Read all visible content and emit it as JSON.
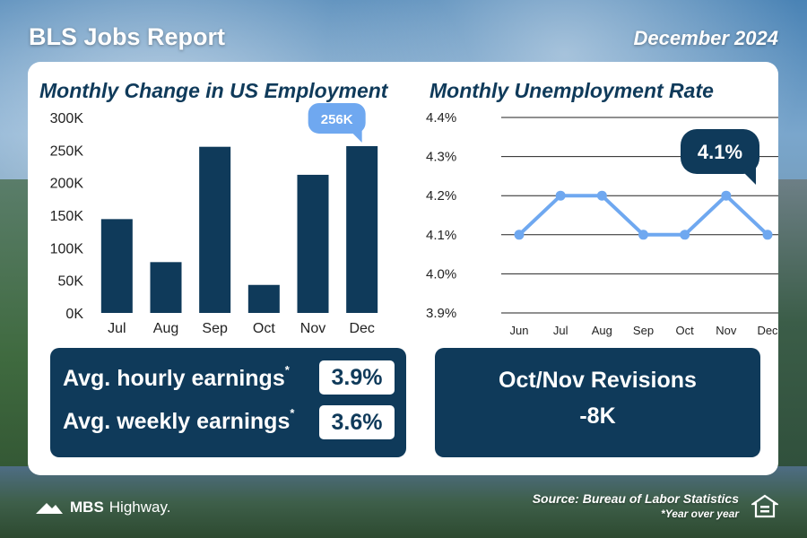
{
  "header": {
    "title": "BLS Jobs Report",
    "date": "December 2024"
  },
  "chart_data": [
    {
      "type": "bar",
      "title": "Monthly Change in US Employment",
      "categories": [
        "Jul",
        "Aug",
        "Sep",
        "Oct",
        "Nov",
        "Dec"
      ],
      "values": [
        144000,
        78000,
        255000,
        43000,
        212000,
        256000
      ],
      "ylim": [
        0,
        300000
      ],
      "yticks": [
        "0K",
        "50K",
        "100K",
        "150K",
        "200K",
        "250K",
        "300K"
      ],
      "callout": "256K",
      "color": "#0f3a5a"
    },
    {
      "type": "line",
      "title": "Monthly Unemployment Rate",
      "categories": [
        "Jun",
        "Jul",
        "Aug",
        "Sep",
        "Oct",
        "Nov",
        "Dec"
      ],
      "values": [
        4.1,
        4.2,
        4.2,
        4.1,
        4.1,
        4.2,
        4.1
      ],
      "ylim": [
        3.9,
        4.4
      ],
      "yticks": [
        "3.9%",
        "4.0%",
        "4.1%",
        "4.2%",
        "4.3%",
        "4.4%"
      ],
      "callout": "4.1%",
      "grid": true,
      "color": "#6fa8f0"
    }
  ],
  "earnings": {
    "hourly_label": "Avg. hourly earnings",
    "hourly_value": "3.9%",
    "weekly_label": "Avg. weekly earnings",
    "weekly_value": "3.6%",
    "marker": "*"
  },
  "revisions": {
    "label": "Oct/Nov Revisions",
    "value": "-8K"
  },
  "footer": {
    "brand_bold": "MBS",
    "brand_light": "Highway.",
    "source": "Source: Bureau of Labor Statistics",
    "note": "*Year over year",
    "icons": [
      "mbs-highway-logo-icon",
      "equal-housing-icon"
    ]
  }
}
